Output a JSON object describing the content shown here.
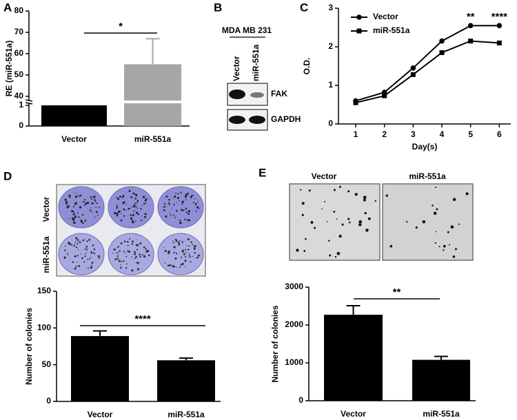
{
  "chart_data": [
    {
      "type": "bar",
      "panel": "A",
      "ylabel": "RE (miR-551a)",
      "categories": [
        "Vector",
        "miR-551a"
      ],
      "values": [
        1,
        55
      ],
      "errors": [
        0,
        12
      ],
      "colors": [
        "#000000",
        "#a6a6a6"
      ],
      "ylim": [
        0,
        80
      ],
      "ybreak": [
        1.1,
        38
      ],
      "yticks": [
        0,
        1,
        40,
        50,
        60,
        70,
        80
      ],
      "significance": "*"
    },
    {
      "type": "line",
      "panel": "C",
      "xlabel": "Day(s)",
      "ylabel": "O.D.",
      "x": [
        1,
        2,
        3,
        4,
        5,
        6
      ],
      "series": [
        {
          "name": "Vector",
          "color": "#000000",
          "marker": "circle",
          "values": [
            0.6,
            0.82,
            1.45,
            2.15,
            2.55,
            2.55
          ]
        },
        {
          "name": "miR-551a",
          "color": "#000000",
          "marker": "square",
          "values": [
            0.55,
            0.73,
            1.28,
            1.85,
            2.15,
            2.1
          ]
        }
      ],
      "xlim": [
        0.4,
        6.4
      ],
      "xticks": [
        1,
        2,
        3,
        4,
        5,
        6
      ],
      "ylim": [
        0,
        3
      ],
      "yticks": [
        0,
        1,
        2,
        3
      ],
      "legend": "top-left",
      "annotations": [
        {
          "x": 5,
          "text": "**"
        },
        {
          "x": 6,
          "text": "****"
        }
      ]
    },
    {
      "type": "bar",
      "panel": "D",
      "ylabel": "Number of colonies",
      "categories": [
        "Vector",
        "miR-551a"
      ],
      "values": [
        89,
        56
      ],
      "errors": [
        7,
        3
      ],
      "colors": [
        "#000000",
        "#000000"
      ],
      "ylim": [
        0,
        150
      ],
      "yticks": [
        0,
        50,
        100,
        150
      ],
      "significance": "****"
    },
    {
      "type": "bar",
      "panel": "E",
      "ylabel": "Number of colonies",
      "categories": [
        "Vector",
        "miR-551a"
      ],
      "values": [
        2270,
        1080
      ],
      "errors": [
        240,
        90
      ],
      "colors": [
        "#000000",
        "#000000"
      ],
      "ylim": [
        0,
        3000
      ],
      "yticks": [
        0,
        1000,
        2000,
        3000
      ],
      "significance": "**"
    }
  ],
  "blot": {
    "panel": "B",
    "cell_line": "MDA MB 231",
    "lanes": [
      "Vector",
      "miR-551a"
    ],
    "bands": [
      "FAK",
      "GAPDH"
    ]
  },
  "plates": {
    "labels": [
      "Vector",
      "miR-551a"
    ]
  },
  "micrographs": {
    "labels": [
      "Vector",
      "miR-551a"
    ]
  }
}
